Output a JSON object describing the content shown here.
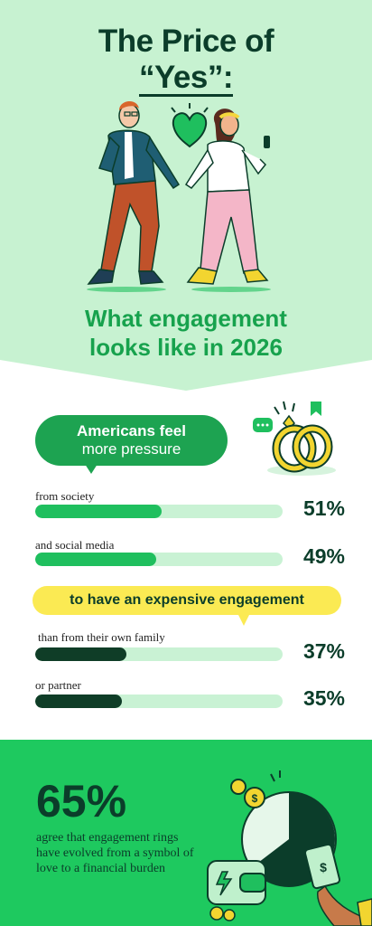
{
  "hero": {
    "title_line1": "The Price of",
    "title_line2": "“Yes”:",
    "subtitle_line1": "What engagement",
    "subtitle_line2": "looks like in 2026"
  },
  "pressure": {
    "heading_bold": "Americans feel",
    "heading_light": "more pressure",
    "stats": [
      {
        "label": "from society",
        "value": "51%",
        "fraction": 0.51
      },
      {
        "label": "and social media",
        "value": "49%",
        "fraction": 0.49
      }
    ]
  },
  "expensive": {
    "heading": "to have an expensive engagement",
    "stats": [
      {
        "label": "than from their own family",
        "value": "37%",
        "fraction": 0.37
      },
      {
        "label": "or partner",
        "value": "35%",
        "fraction": 0.35
      }
    ]
  },
  "burden": {
    "value": "65%",
    "description": "agree that engagement rings have evolved from a symbol of love to a financial burden"
  },
  "colors": {
    "hero_bg": "#c7f2d1",
    "brand_green": "#1da351",
    "dark_green": "#0b3d2a",
    "bottom_bg": "#1ec95f",
    "yellow": "#fbea53"
  },
  "icons": [
    "heart-icon",
    "rings-icon",
    "chat-bubble-icon",
    "bookmark-icon",
    "wallet-icon",
    "coin-icon",
    "pie-chart-icon",
    "cash-icon"
  ]
}
